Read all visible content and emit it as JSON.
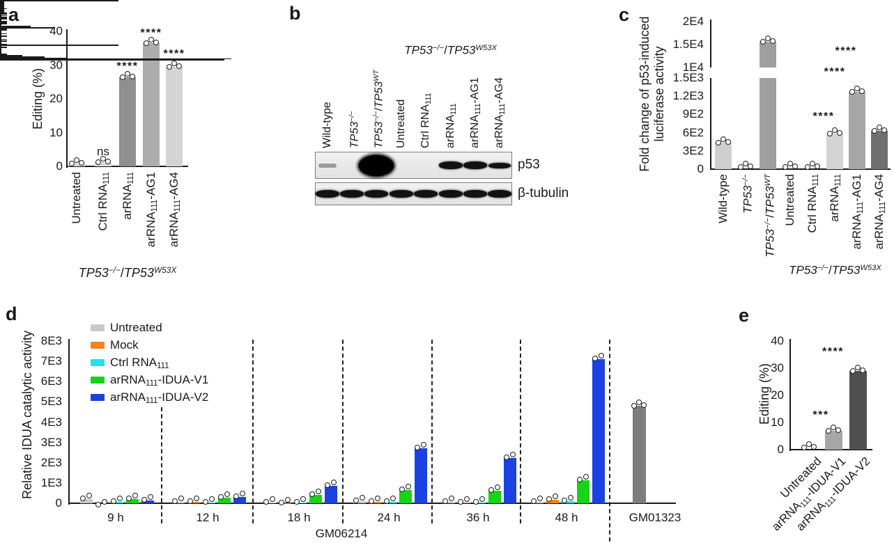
{
  "panel_labels": {
    "a": "a",
    "b": "b",
    "c": "c",
    "d": "d",
    "e": "e"
  },
  "chart_data": [
    {
      "id": "a",
      "type": "bar",
      "ylabel": "Editing (%)",
      "ylim": [
        0,
        40
      ],
      "yticks": [
        0,
        10,
        20,
        30,
        40
      ],
      "categories": [
        "Untreated",
        "Ctrl RNA~111~",
        "arRNA~111~",
        "arRNA~111~-AG1",
        "arRNA~111~-AG4"
      ],
      "values": [
        0.9,
        1.2,
        26.3,
        36.6,
        29.4
      ],
      "errors": [
        0.3,
        0.4,
        1.2,
        0.8,
        1.8
      ],
      "colors": [
        "#d8d8d8",
        "#d8d8d8",
        "#8f8f8f",
        "#acacac",
        "#d4d4d4"
      ],
      "sig": [
        "",
        "ns",
        "****",
        "****",
        "****"
      ],
      "group_label": "*TP53*^*−/−*^/*TP53*^*W53X*^"
    },
    {
      "id": "c",
      "type": "bar-broken-axis",
      "ylabel_line1": "Fold change of p53-induced",
      "ylabel_line2": "luciferase activity",
      "lower_ticks": [
        {
          "v": 0,
          "label": "0"
        },
        {
          "v": 300,
          "label": "3E2"
        },
        {
          "v": 600,
          "label": "6E2"
        },
        {
          "v": 900,
          "label": "9E2"
        },
        {
          "v": 1200,
          "label": "1.2E3"
        },
        {
          "v": 1500,
          "label": "1.5E3"
        }
      ],
      "upper_ticks": [
        {
          "v": 10000,
          "label": "1E4"
        },
        {
          "v": 15000,
          "label": "1.5E4"
        },
        {
          "v": 20000,
          "label": "2E4"
        }
      ],
      "lower_range": [
        0,
        1500
      ],
      "upper_range": [
        10000,
        20000
      ],
      "categories": [
        "Wild-type",
        "*TP53*^*−/−*^",
        "*TP53*^*−/−*^/*TP53*^*WT*^",
        "Untreated",
        "Ctrl RNA~111~",
        "arRNA~111~",
        "arRNA~111~-AG1",
        "arRNA~111~-AG4"
      ],
      "values": [
        430,
        0,
        15600,
        0,
        0,
        590,
        1270,
        630
      ],
      "errors": [
        30,
        0,
        400,
        0,
        0,
        40,
        60,
        40
      ],
      "colors": [
        "#cfcfcf",
        "#cfcfcf",
        "#9f9f9f",
        "#cfcfcf",
        "#cfcfcf",
        "#d4d4d4",
        "#a7a7a7",
        "#6f6f6f"
      ],
      "sig_lines": [
        {
          "from": 4,
          "to": 5,
          "label": "****"
        },
        {
          "from": 4,
          "to": 6,
          "label": "****"
        },
        {
          "from": 4,
          "to": 7,
          "label": "****"
        }
      ],
      "group_label": "*TP53*^*−/−*^/*TP53*^*W53X*^",
      "group_span_from": 3,
      "group_span_to": 7
    },
    {
      "id": "d",
      "type": "grouped-bar",
      "ylabel": "Relative IDUA catalytic activity",
      "ylim": [
        0,
        8000
      ],
      "yticks": [
        {
          "v": 0,
          "label": "0"
        },
        {
          "v": 1000,
          "label": "1E3"
        },
        {
          "v": 2000,
          "label": "2E3"
        },
        {
          "v": 3000,
          "label": "3E3"
        },
        {
          "v": 4000,
          "label": "4E3"
        },
        {
          "v": 5000,
          "label": "5E3"
        },
        {
          "v": 6000,
          "label": "6E3"
        },
        {
          "v": 7000,
          "label": "7E3"
        },
        {
          "v": 8000,
          "label": "8E3"
        }
      ],
      "groups": [
        "9 h",
        "12 h",
        "18 h",
        "24 h",
        "36 h",
        "48 h"
      ],
      "series": [
        {
          "name": "Untreated",
          "color": "#c9c9c9",
          "values": [
            210,
            70,
            50,
            110,
            80,
            60
          ],
          "errors": [
            40,
            20,
            15,
            30,
            25,
            20
          ]
        },
        {
          "name": "Mock",
          "color": "#f5831e",
          "values": [
            -60,
            60,
            10,
            70,
            40,
            160
          ],
          "errors": [
            20,
            15,
            10,
            20,
            15,
            30
          ]
        },
        {
          "name": "Ctrl RNA~111~",
          "color": "#25e0f0",
          "values": [
            60,
            45,
            20,
            55,
            45,
            120
          ],
          "errors": [
            20,
            15,
            10,
            15,
            15,
            25
          ]
        },
        {
          "name": "arRNA~111~-IDUA-V1",
          "color": "#17d417",
          "values": [
            215,
            260,
            420,
            670,
            620,
            1150
          ],
          "errors": [
            35,
            45,
            55,
            90,
            60,
            120
          ]
        },
        {
          "name": "arRNA~111~-IDUA-V2",
          "color": "#1b41e0",
          "values": [
            140,
            300,
            870,
            2700,
            2250,
            7100
          ],
          "errors": [
            35,
            50,
            90,
            180,
            200,
            480
          ]
        }
      ],
      "extra_group": {
        "label": "GM01323",
        "value": 4820,
        "error": 70,
        "color": "#7d7d7d"
      },
      "cell_line_label": "GM06214"
    },
    {
      "id": "e",
      "type": "bar",
      "ylabel": "Editing (%)",
      "ylim": [
        0,
        40
      ],
      "yticks": [
        0,
        10,
        20,
        30,
        40
      ],
      "categories": [
        "Untreated",
        "arRNA~111~-IDUA-V1",
        "arRNA~111~-IDUA-V2"
      ],
      "values": [
        0.3,
        7,
        29
      ],
      "errors": [
        0.2,
        0.7,
        1.6
      ],
      "colors": [
        "#d8d8d8",
        "#a6a6a6",
        "#4f4f4f"
      ],
      "sig_lines": [
        {
          "from": 0,
          "to": 1,
          "label": "***"
        },
        {
          "from": 0,
          "to": 2,
          "label": "****"
        }
      ]
    }
  ],
  "western_blot": {
    "bracket_label": "*TP53*^*−/−*^/*TP53*^*W53X*^",
    "bracket_span_from": 3,
    "bracket_span_to": 7,
    "lanes": [
      "Wild-type",
      "*TP53*^*−/−*^",
      "*TP53*^*−/−*^/*TP53*^*WT*^",
      "Untreated",
      "Ctrl RNA~111~",
      "arRNA~111~",
      "arRNA~111~-AG1",
      "arRNA~111~-AG4"
    ],
    "blots": [
      {
        "label": "p53",
        "bands": [
          {
            "lane": 0,
            "type": "faint"
          },
          {
            "lane": 2,
            "type": "blob"
          },
          {
            "lane": 5,
            "type": "strong"
          },
          {
            "lane": 6,
            "type": "strong"
          },
          {
            "lane": 7,
            "type": "medium"
          }
        ]
      },
      {
        "label": "β-tubulin",
        "bands": [
          {
            "lane": 0,
            "type": "strong"
          },
          {
            "lane": 1,
            "type": "strong"
          },
          {
            "lane": 2,
            "type": "strong"
          },
          {
            "lane": 3,
            "type": "strong"
          },
          {
            "lane": 4,
            "type": "strong"
          },
          {
            "lane": 5,
            "type": "strong"
          },
          {
            "lane": 6,
            "type": "strong"
          },
          {
            "lane": 7,
            "type": "strong"
          }
        ]
      }
    ]
  }
}
